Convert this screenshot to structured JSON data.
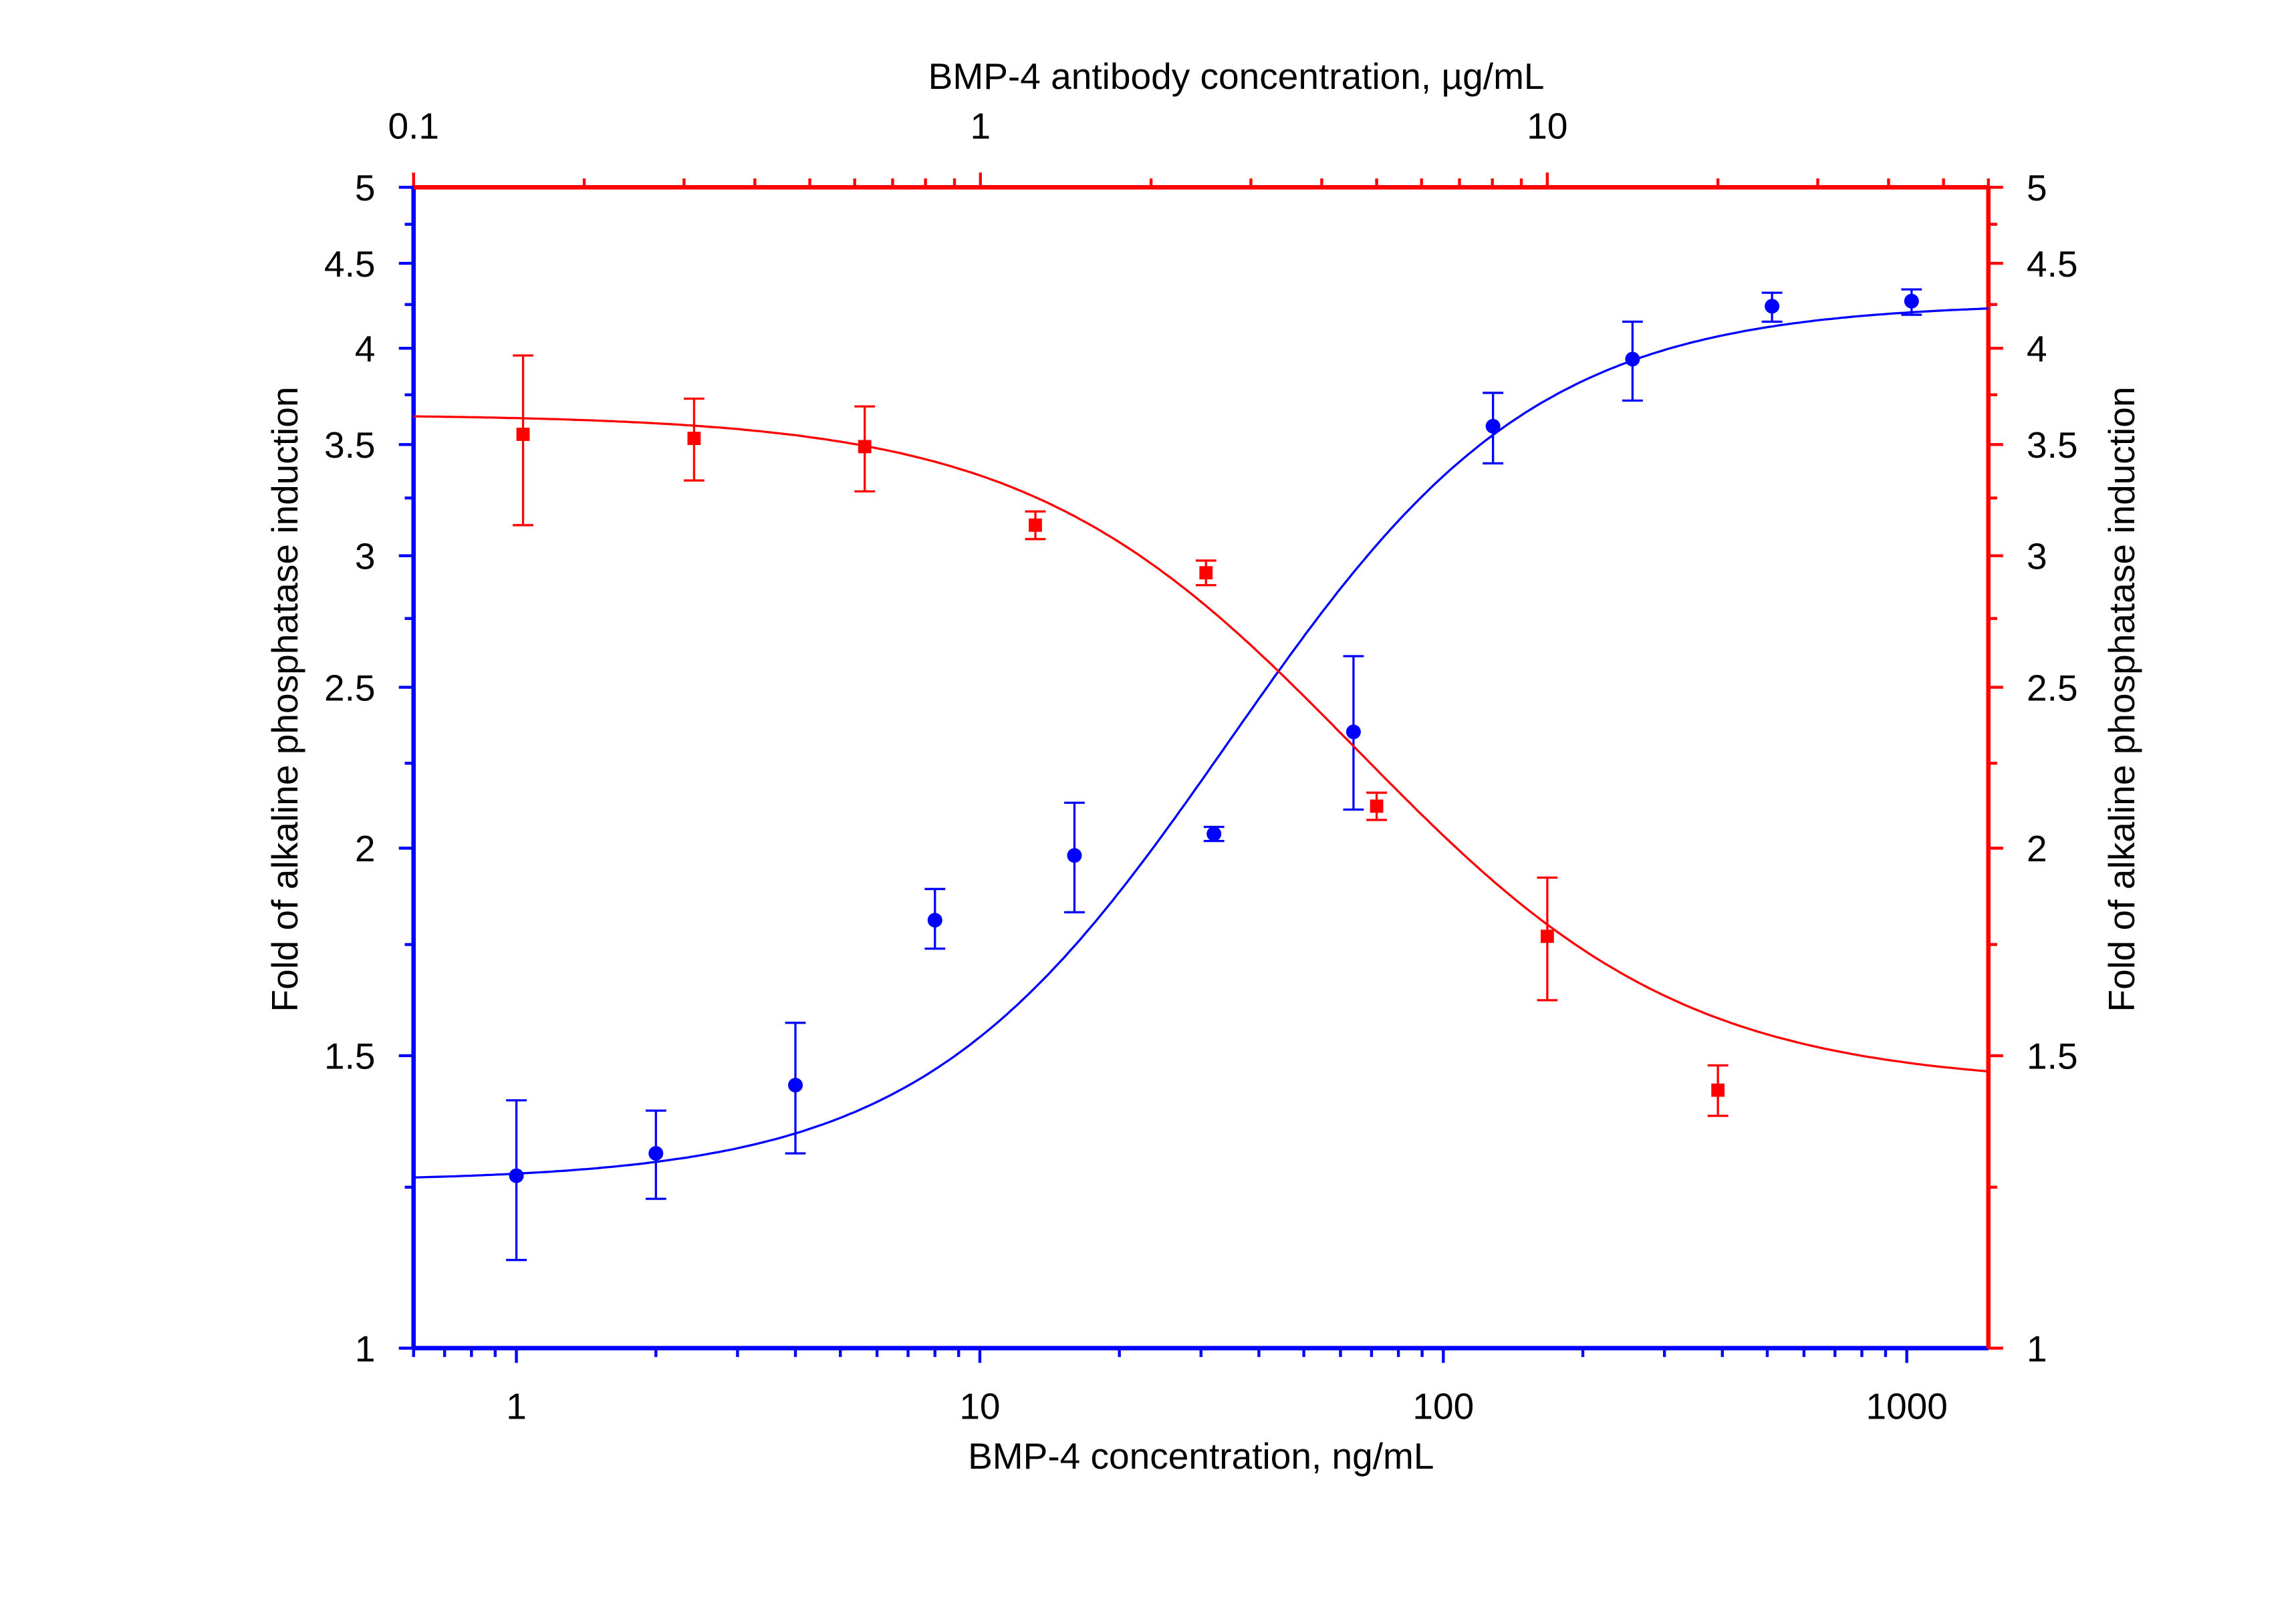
{
  "chart_data": {
    "type": "scatter",
    "title": "",
    "xlabel": "BMP-4 concentration, ng/mL",
    "x2label": "BMP-4 antibody concentration, µg/mL",
    "ylabel": "Fold of alkaline phosphatase induction",
    "y2label": "Fold of alkaline phosphatase induction",
    "xscale": "log",
    "x2scale": "log",
    "yscale": "log",
    "xlim": [
      0.6,
      1500
    ],
    "x2lim": [
      0.1,
      60
    ],
    "ylim": [
      1,
      5
    ],
    "xticks": [
      "1",
      "10",
      "100",
      "1000"
    ],
    "x2ticks": [
      "0.1",
      "1",
      "10"
    ],
    "yticks": [
      "1",
      "1.5",
      "2",
      "2.5",
      "3",
      "3.5",
      "4",
      "4.5",
      "5"
    ],
    "grid": false,
    "series": [
      {
        "name": "BMP-4",
        "axis": "bottom-left",
        "color": "#0000ff",
        "marker": "circle",
        "x": [
          1,
          2,
          4,
          8,
          16,
          32,
          64,
          128,
          256,
          512,
          1024
        ],
        "y": [
          1.27,
          1.31,
          1.44,
          1.81,
          1.98,
          2.04,
          2.35,
          3.59,
          3.94,
          4.24,
          4.27
        ],
        "err_high": [
          1.41,
          1.39,
          1.57,
          1.89,
          2.13,
          2.06,
          2.61,
          3.76,
          4.15,
          4.32,
          4.34
        ],
        "err_low": [
          1.13,
          1.23,
          1.31,
          1.74,
          1.83,
          2.02,
          2.11,
          3.41,
          3.72,
          4.15,
          4.19
        ],
        "fit": {
          "model": "4PL",
          "bottom": 1.26,
          "top": 4.26,
          "ec50": 54,
          "hill": 1.35
        }
      },
      {
        "name": "BMP-4 antibody",
        "axis": "top-right",
        "color": "#ff0000",
        "marker": "square",
        "x": [
          0.156,
          0.3125,
          0.625,
          1.25,
          2.5,
          5,
          10,
          20
        ],
        "y": [
          3.55,
          3.53,
          3.49,
          3.13,
          2.93,
          2.12,
          1.77,
          1.43
        ],
        "err_high": [
          3.96,
          3.73,
          3.69,
          3.19,
          2.98,
          2.16,
          1.92,
          1.48
        ],
        "err_low": [
          3.13,
          3.33,
          3.28,
          3.07,
          2.88,
          2.08,
          1.62,
          1.38
        ],
        "fit": {
          "model": "4PL",
          "bottom": 1.44,
          "top": 3.65,
          "ec50": 3.4,
          "hill": -1.52
        }
      }
    ]
  }
}
